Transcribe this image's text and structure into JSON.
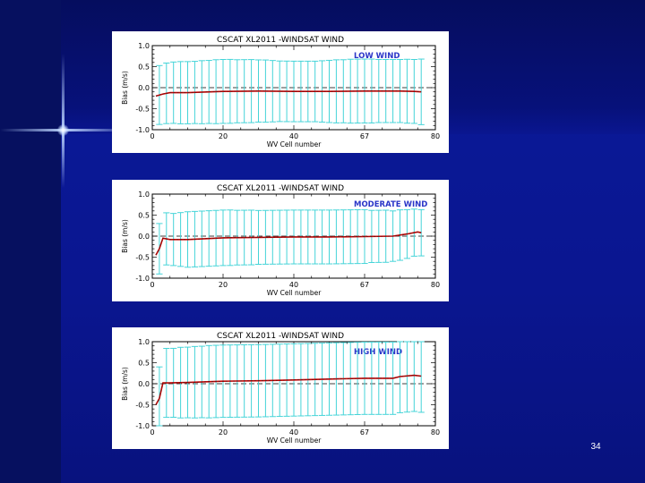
{
  "slide": {
    "number": "34"
  },
  "colors": {
    "background": "#0a1690",
    "error_bar": "#45d4d8",
    "bias_line": "#c00000",
    "axis": "#000000",
    "panel_label": "#2a35c8"
  },
  "chart_data": [
    {
      "type": "line",
      "title": "CSCAT XL2011 -WINDSAT WIND",
      "panel_label": "LOW WIND",
      "xlabel": "WV Cell number",
      "ylabel": "Bias (m/s)",
      "xlim": [
        0,
        80
      ],
      "ylim": [
        -1.0,
        1.0
      ],
      "xticks": [
        "0",
        "20",
        "40",
        "67",
        "80"
      ],
      "yticks": [
        "-1.0",
        "-0.5",
        "0.0",
        "0.5",
        "1.0"
      ],
      "zero_line": "dashed",
      "series": [
        {
          "style": "bias",
          "x": [
            1,
            3,
            5,
            10,
            20,
            30,
            40,
            50,
            60,
            70,
            74,
            76
          ],
          "y": [
            -0.2,
            -0.15,
            -0.12,
            -0.12,
            -0.09,
            -0.08,
            -0.09,
            -0.09,
            -0.08,
            -0.08,
            -0.09,
            -0.1
          ]
        },
        {
          "style": "error_bars",
          "x": [
            2,
            4,
            6,
            8,
            10,
            12,
            14,
            16,
            18,
            20,
            22,
            24,
            26,
            28,
            30,
            32,
            34,
            36,
            38,
            40,
            42,
            44,
            46,
            48,
            50,
            52,
            54,
            56,
            58,
            60,
            62,
            64,
            66,
            68,
            70,
            72,
            74,
            76
          ],
          "half_width": [
            0.7,
            0.72,
            0.73,
            0.74,
            0.74,
            0.74,
            0.75,
            0.75,
            0.76,
            0.76,
            0.76,
            0.75,
            0.75,
            0.75,
            0.74,
            0.74,
            0.73,
            0.72,
            0.72,
            0.72,
            0.72,
            0.72,
            0.72,
            0.73,
            0.74,
            0.75,
            0.75,
            0.76,
            0.76,
            0.76,
            0.76,
            0.75,
            0.75,
            0.75,
            0.75,
            0.76,
            0.76,
            0.78
          ]
        }
      ]
    },
    {
      "type": "line",
      "title": "CSCAT XL2011 -WINDSAT WIND",
      "panel_label": "MODERATE WIND",
      "xlabel": "WV Cell number",
      "ylabel": "Bias (m/s)",
      "xlim": [
        0,
        80
      ],
      "ylim": [
        -1.0,
        1.0
      ],
      "xticks": [
        "0",
        "20",
        "40",
        "67",
        "80"
      ],
      "yticks": [
        "-1.0",
        "-0.5",
        "0.0",
        "0.5",
        "1.0"
      ],
      "zero_line": "dashed",
      "series": [
        {
          "style": "bias",
          "x": [
            1,
            2,
            3,
            5,
            10,
            20,
            30,
            40,
            50,
            60,
            68,
            72,
            75,
            76
          ],
          "y": [
            -0.45,
            -0.3,
            -0.05,
            -0.08,
            -0.08,
            -0.04,
            -0.03,
            -0.02,
            -0.02,
            -0.01,
            0.0,
            0.05,
            0.1,
            0.08
          ]
        },
        {
          "style": "error_bars",
          "x": [
            2,
            4,
            6,
            8,
            10,
            12,
            14,
            16,
            18,
            20,
            22,
            24,
            26,
            28,
            30,
            32,
            34,
            36,
            38,
            40,
            42,
            44,
            46,
            48,
            50,
            52,
            54,
            56,
            58,
            60,
            62,
            64,
            66,
            68,
            70,
            72,
            74,
            76
          ],
          "half_width": [
            0.6,
            0.62,
            0.62,
            0.64,
            0.66,
            0.66,
            0.66,
            0.66,
            0.66,
            0.66,
            0.66,
            0.65,
            0.65,
            0.65,
            0.64,
            0.64,
            0.64,
            0.64,
            0.64,
            0.64,
            0.64,
            0.64,
            0.64,
            0.64,
            0.64,
            0.64,
            0.64,
            0.64,
            0.64,
            0.64,
            0.62,
            0.62,
            0.62,
            0.6,
            0.6,
            0.58,
            0.56,
            0.55
          ]
        }
      ]
    },
    {
      "type": "line",
      "title": "CSCAT XL2011 -WINDSAT WIND",
      "panel_label": "HIGH WIND",
      "xlabel": "WV Cell number",
      "ylabel": "Bias (m/s)",
      "xlim": [
        0,
        80
      ],
      "ylim": [
        -1.0,
        1.0
      ],
      "xticks": [
        "0",
        "20",
        "40",
        "67",
        "80"
      ],
      "yticks": [
        "-1.0",
        "-0.5",
        "0.0",
        "0.5",
        "1.0"
      ],
      "zero_line": "dashed",
      "series": [
        {
          "style": "bias",
          "x": [
            1,
            2,
            3,
            5,
            10,
            20,
            30,
            40,
            50,
            60,
            68,
            70,
            74,
            76
          ],
          "y": [
            -0.5,
            -0.35,
            0.02,
            0.02,
            0.03,
            0.06,
            0.07,
            0.09,
            0.11,
            0.13,
            0.13,
            0.17,
            0.2,
            0.18
          ]
        },
        {
          "style": "error_bars",
          "x": [
            2,
            4,
            6,
            8,
            10,
            12,
            14,
            16,
            18,
            20,
            22,
            24,
            26,
            28,
            30,
            32,
            34,
            36,
            38,
            40,
            42,
            44,
            46,
            48,
            50,
            52,
            54,
            56,
            58,
            60,
            62,
            64,
            66,
            68,
            70,
            72,
            74,
            76
          ],
          "half_width": [
            0.75,
            0.82,
            0.82,
            0.84,
            0.84,
            0.85,
            0.85,
            0.86,
            0.86,
            0.86,
            0.86,
            0.86,
            0.86,
            0.86,
            0.86,
            0.86,
            0.86,
            0.86,
            0.86,
            0.86,
            0.86,
            0.86,
            0.86,
            0.86,
            0.86,
            0.86,
            0.86,
            0.86,
            0.86,
            0.86,
            0.86,
            0.86,
            0.86,
            0.86,
            0.86,
            0.86,
            0.86,
            0.86
          ]
        }
      ]
    }
  ]
}
